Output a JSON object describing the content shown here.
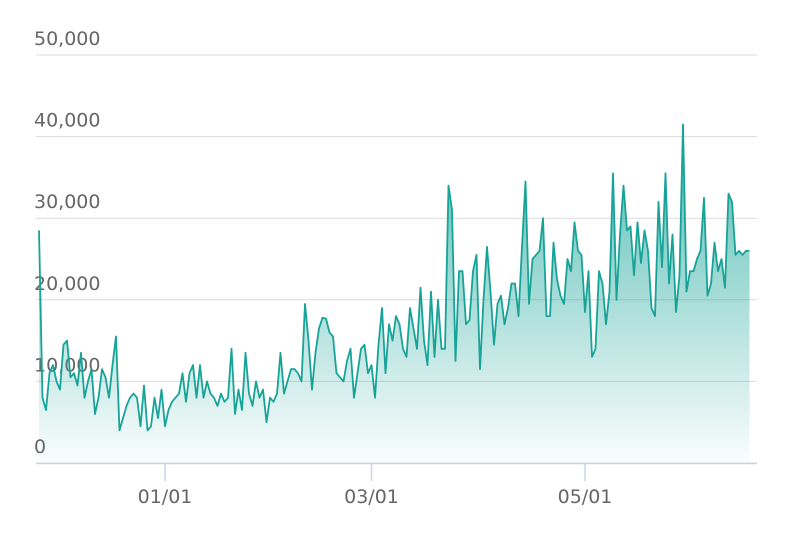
{
  "chart_data": {
    "type": "area",
    "color": "#17a398",
    "grid": true,
    "ylim": [
      0,
      50000
    ],
    "yticks": [
      0,
      {
        "value": 10000,
        "label": "10,000"
      },
      {
        "value": 20000,
        "label": "20,000"
      },
      {
        "value": 30000,
        "label": "30,000"
      },
      {
        "value": 40000,
        "label": "40,000"
      },
      {
        "value": 50000,
        "label": "50,000"
      }
    ],
    "categories": [
      null,
      null,
      null,
      null,
      null,
      null,
      null,
      null,
      null,
      null,
      null,
      null,
      null,
      null,
      null,
      null,
      null,
      null,
      null,
      null,
      null,
      null,
      null,
      null,
      null,
      null,
      null,
      null,
      null,
      null,
      null,
      null,
      null,
      null,
      null,
      null,
      "01/01",
      null,
      null,
      null,
      null,
      null,
      null,
      null,
      null,
      null,
      null,
      null,
      null,
      null,
      null,
      null,
      null,
      null,
      null,
      null,
      null,
      null,
      null,
      null,
      null,
      null,
      null,
      null,
      null,
      null,
      null,
      null,
      null,
      null,
      null,
      null,
      null,
      null,
      null,
      null,
      null,
      null,
      null,
      null,
      null,
      null,
      null,
      null,
      null,
      null,
      null,
      null,
      null,
      null,
      null,
      null,
      null,
      null,
      null,
      "03/01",
      null,
      null,
      null,
      null,
      null,
      null,
      null,
      null,
      null,
      null,
      null,
      null,
      null,
      null,
      null,
      null,
      null,
      null,
      null,
      null,
      null,
      null,
      null,
      null,
      null,
      null,
      null,
      null,
      null,
      null,
      null,
      null,
      null,
      null,
      null,
      null,
      null,
      null,
      null,
      null,
      null,
      null,
      null,
      null,
      null,
      null,
      null,
      null,
      null,
      null,
      null,
      null,
      null,
      null,
      null,
      null,
      null,
      null,
      null,
      null,
      "05/01",
      null,
      null,
      null,
      null,
      null,
      null,
      null,
      null,
      null,
      null,
      null,
      null,
      null,
      null,
      null,
      null,
      null,
      null,
      null,
      null,
      null,
      null,
      null,
      null,
      null,
      null,
      null,
      null,
      null,
      null,
      null,
      null,
      null,
      null,
      null,
      null,
      null,
      null,
      null,
      null,
      null,
      null,
      null,
      null,
      null,
      null,
      null
    ],
    "values": [
      28500,
      8000,
      6500,
      11000,
      12000,
      10000,
      9000,
      14500,
      15000,
      10500,
      11000,
      9500,
      13500,
      8000,
      10000,
      11500,
      6000,
      8000,
      11500,
      10500,
      8000,
      12000,
      15500,
      4000,
      5500,
      7000,
      8000,
      8500,
      8000,
      4500,
      9500,
      4000,
      4500,
      8000,
      5500,
      9000,
      4500,
      6500,
      7500,
      8000,
      8500,
      11000,
      7500,
      11000,
      12000,
      8000,
      12000,
      8000,
      10000,
      8500,
      8000,
      7000,
      8500,
      7500,
      8000,
      14000,
      6000,
      9000,
      6500,
      13500,
      8500,
      7000,
      10000,
      8000,
      9000,
      5000,
      8000,
      7500,
      8500,
      13500,
      8500,
      10000,
      11500,
      11500,
      11000,
      10000,
      19500,
      15000,
      9000,
      13500,
      16500,
      17800,
      17700,
      16000,
      15500,
      11000,
      10500,
      10000,
      12500,
      14000,
      8000,
      11000,
      14000,
      14500,
      11000,
      12000,
      8000,
      14500,
      19000,
      11000,
      17000,
      15000,
      18000,
      17000,
      14000,
      13000,
      19000,
      16500,
      14000,
      21500,
      15000,
      12000,
      21000,
      13000,
      20000,
      14000,
      14000,
      34000,
      31000,
      12500,
      23500,
      23500,
      17000,
      17500,
      23500,
      25500,
      11500,
      20000,
      26500,
      21000,
      14500,
      19500,
      20500,
      17000,
      19000,
      22000,
      22000,
      18000,
      26500,
      34500,
      19500,
      25000,
      25500,
      26000,
      30000,
      18000,
      18000,
      27000,
      22500,
      20500,
      19500,
      25000,
      23500,
      29500,
      26000,
      25500,
      18500,
      23500,
      13000,
      14000,
      23500,
      22000,
      17000,
      21000,
      35500,
      20000,
      28000,
      34000,
      28500,
      29000,
      23000,
      29500,
      24500,
      28500,
      26000,
      19000,
      18000,
      32000,
      24000,
      35500,
      22000,
      28000,
      18500,
      23000,
      41500,
      21000,
      23500,
      23500,
      25000,
      26000,
      32500,
      20500,
      22000,
      27000,
      23500,
      25000,
      21500,
      33000,
      32000,
      25500,
      26000,
      25500,
      26000,
      26000
    ]
  }
}
